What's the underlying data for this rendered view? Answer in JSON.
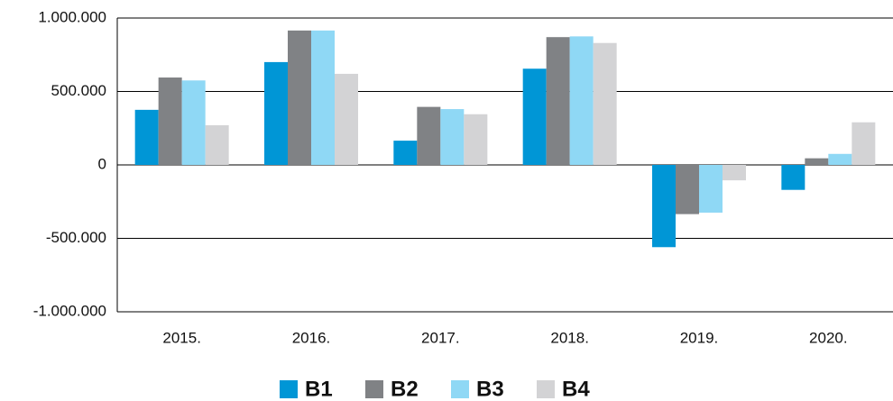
{
  "chart_data": {
    "type": "bar",
    "categories": [
      "2015.",
      "2016.",
      "2017.",
      "2018.",
      "2019.",
      "2020."
    ],
    "series": [
      {
        "name": "B1",
        "color": "#0096d6",
        "values": [
          375000,
          700000,
          165000,
          655000,
          -560000,
          -170000
        ]
      },
      {
        "name": "B2",
        "color": "#808285",
        "values": [
          595000,
          915000,
          395000,
          870000,
          -335000,
          45000
        ]
      },
      {
        "name": "B3",
        "color": "#8fd8f5",
        "values": [
          575000,
          915000,
          380000,
          875000,
          -325000,
          75000
        ]
      },
      {
        "name": "B4",
        "color": "#d3d3d5",
        "values": [
          270000,
          620000,
          345000,
          830000,
          -105000,
          290000
        ]
      }
    ],
    "ylim": [
      -1000000,
      1000000
    ],
    "yticks": [
      {
        "value": -1000000,
        "label": "-1.000.000"
      },
      {
        "value": -500000,
        "label": "-500.000"
      },
      0,
      {
        "value": 500000,
        "label": "500.000"
      },
      {
        "value": 1000000,
        "label": "1.000.000"
      }
    ],
    "grid": true,
    "legend": "bottom"
  }
}
